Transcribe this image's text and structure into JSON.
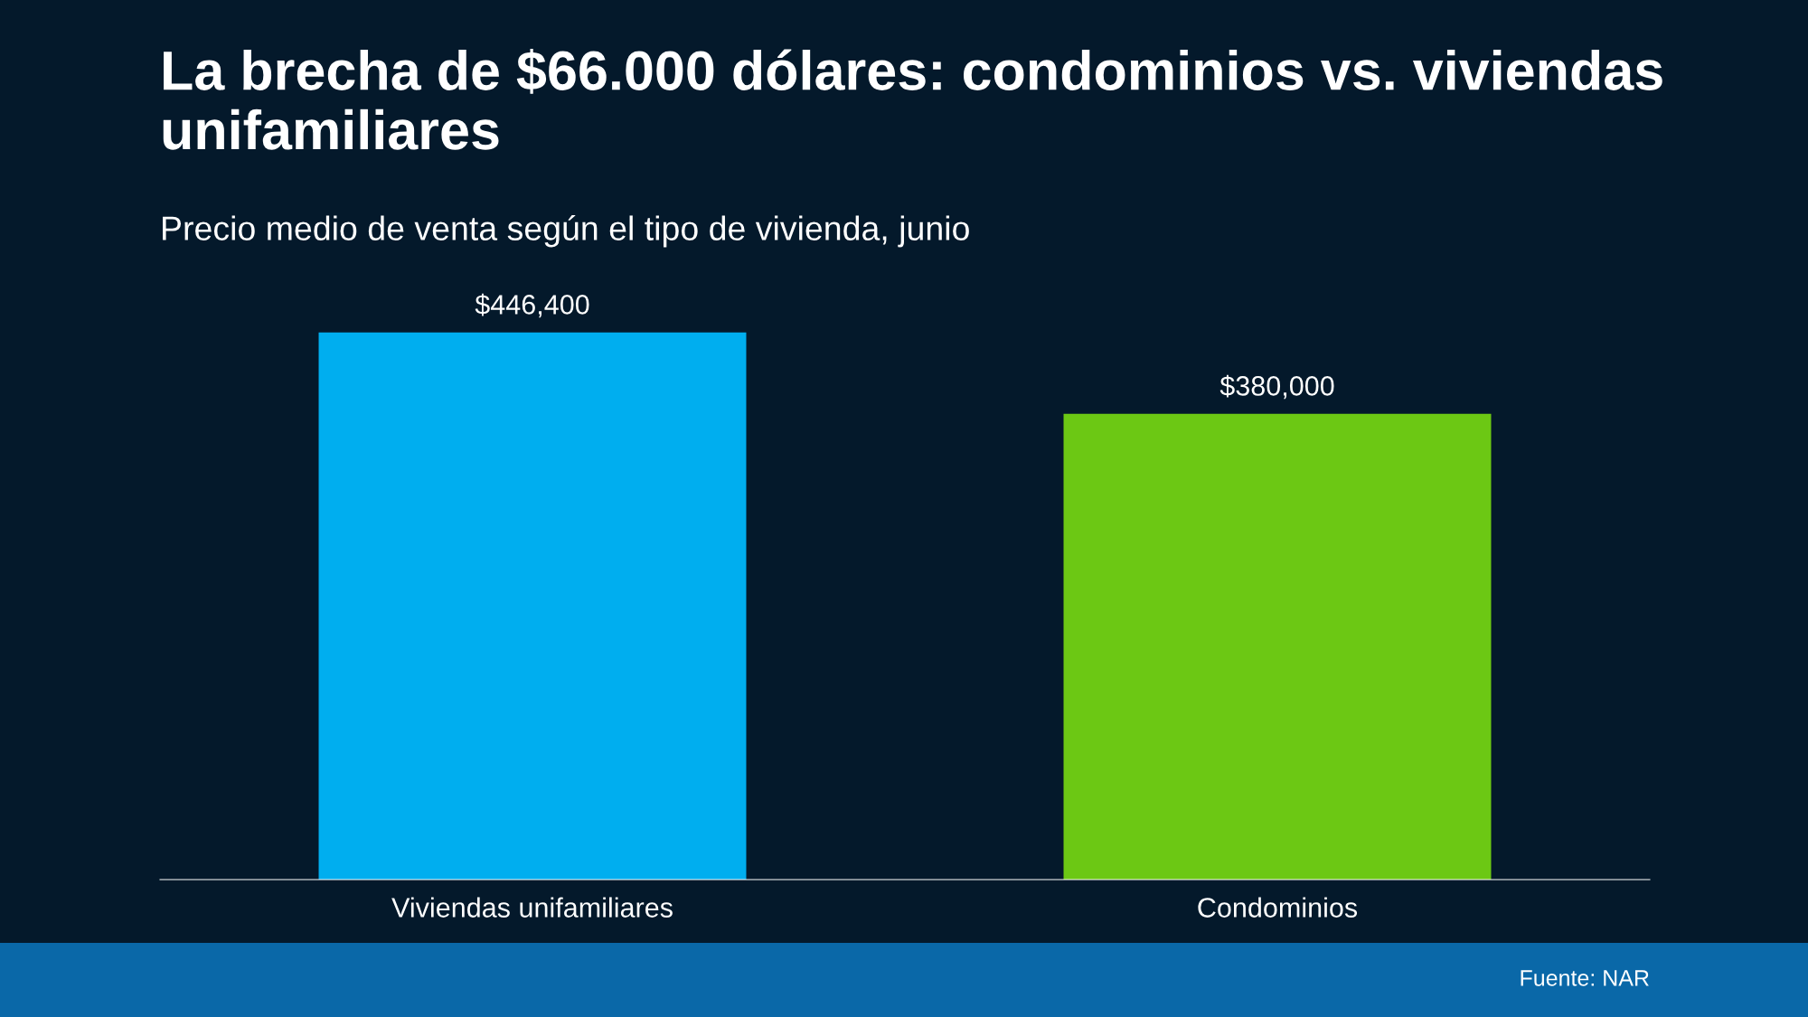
{
  "chart_data": {
    "type": "bar",
    "title": "La brecha de $66.000 dólares: condominios vs. viviendas unifamiliares",
    "subtitle": "Precio medio de venta según el tipo de vivienda, junio",
    "categories": [
      "Viviendas unifamiliares",
      "Condominios"
    ],
    "values": [
      446400,
      380000
    ],
    "colors": [
      "#00aeef",
      "#6cc814"
    ],
    "value_labels": [
      "$446,400",
      "$380,000"
    ],
    "annotations": [
      "Fuente: NAR"
    ],
    "grid": false,
    "legend": false,
    "tick_labels": "x"
  }
}
